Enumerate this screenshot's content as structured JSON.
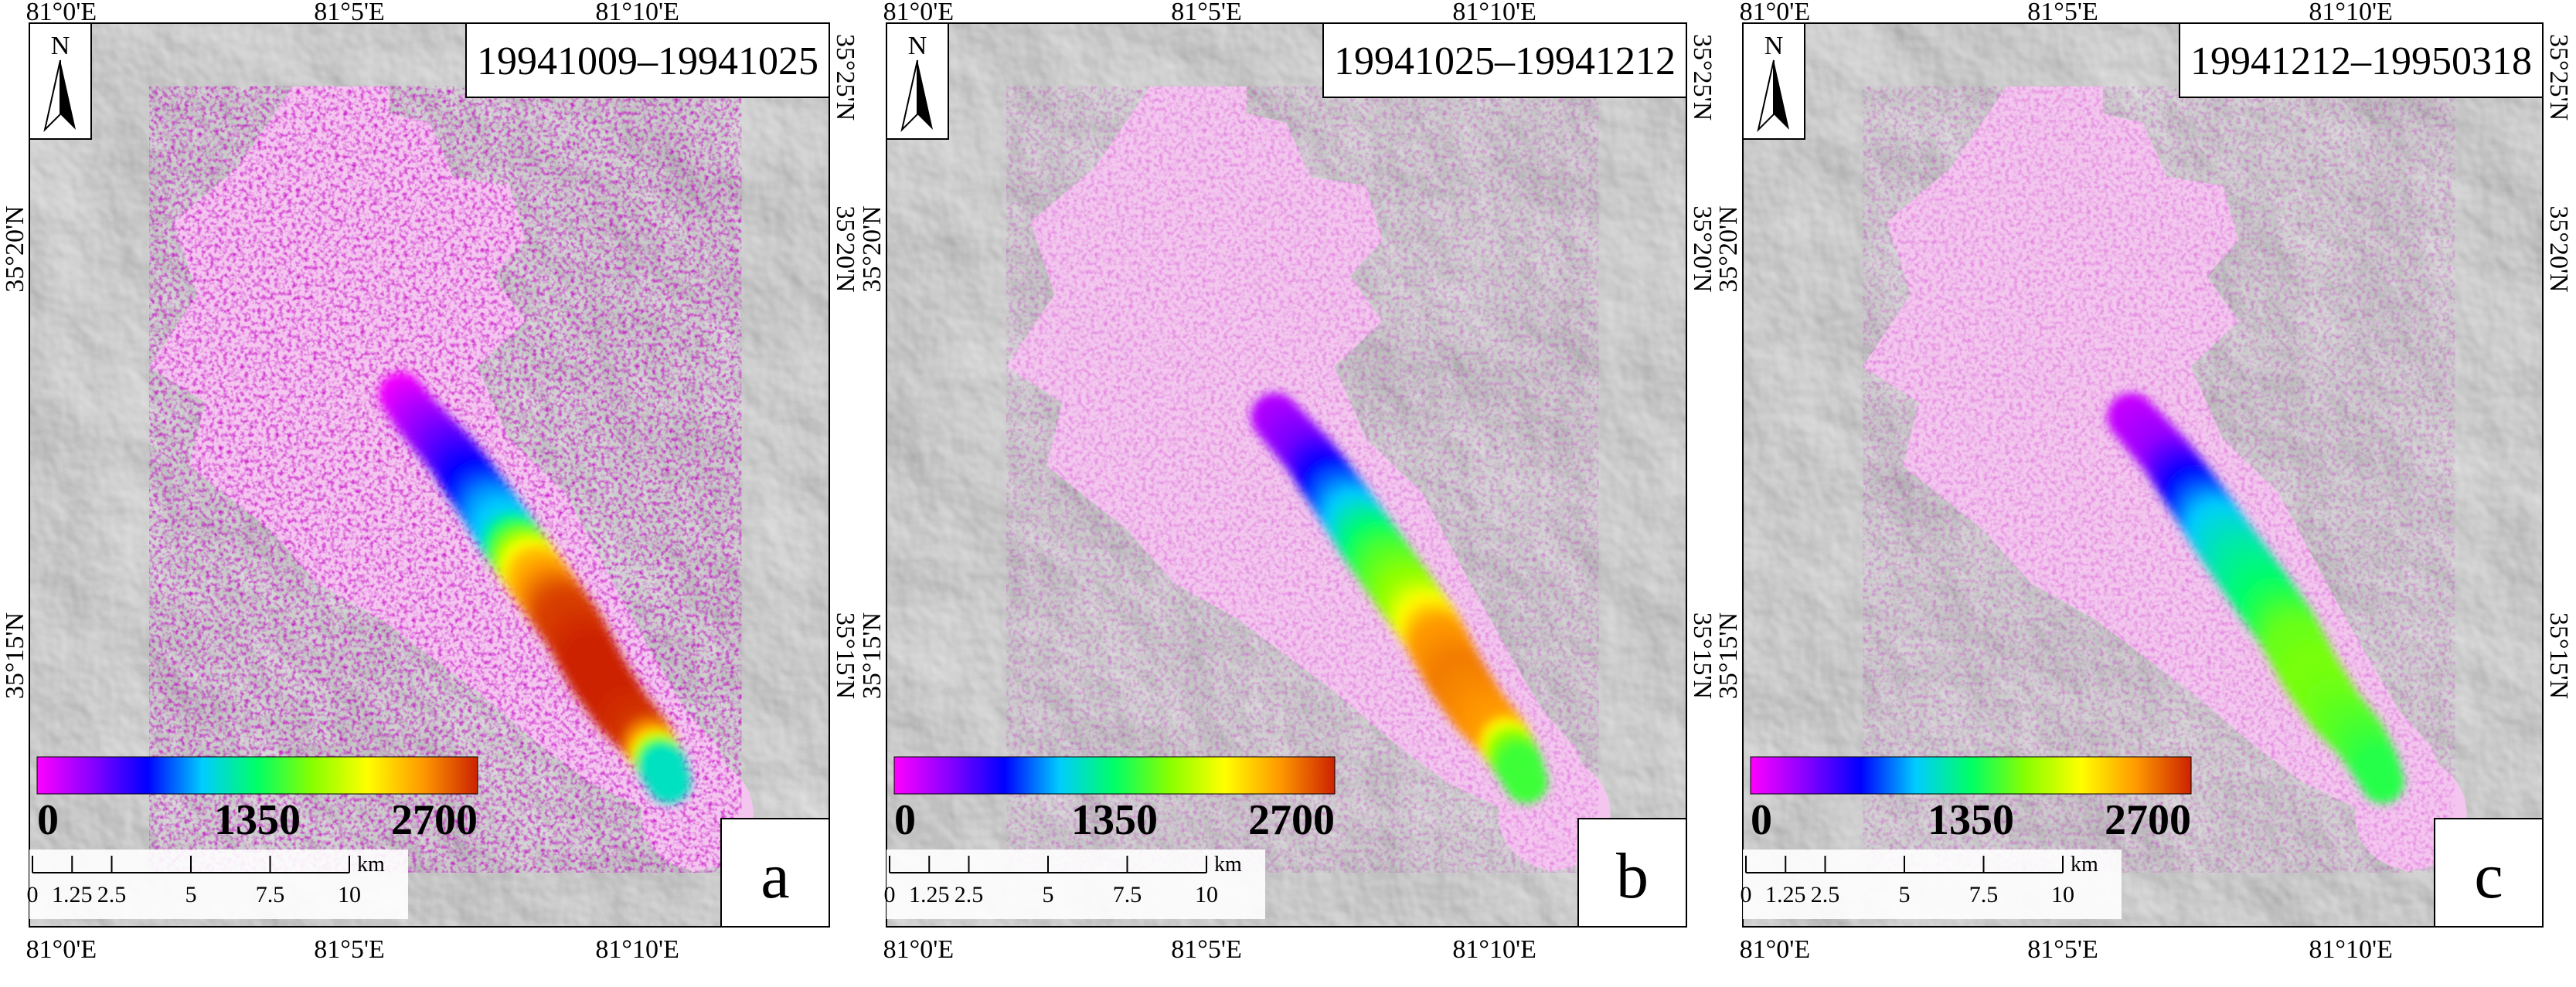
{
  "panels": [
    {
      "letter": "a",
      "date_range": "19941009–19941025",
      "top_lon_labels": [
        "81°0'E",
        "81°5'E",
        "81°10'E"
      ],
      "bottom_lon_labels": [
        "81°0'E",
        "81°5'E",
        "81°10'E"
      ],
      "left_lat_labels": [
        "35°20'N",
        "35°15'N"
      ],
      "right_lat_labels": [
        "35°25'N",
        "35°20'N",
        "35°15'N"
      ],
      "velocity_profile": [
        {
          "pos": 0.05,
          "value": 0
        },
        {
          "pos": 0.22,
          "value": 600
        },
        {
          "pos": 0.3,
          "value": 900
        },
        {
          "pos": 0.36,
          "value": 1050
        },
        {
          "pos": 0.44,
          "value": 2200
        },
        {
          "pos": 0.52,
          "value": 2600
        },
        {
          "pos": 0.62,
          "value": 2700
        },
        {
          "pos": 0.72,
          "value": 2700
        },
        {
          "pos": 0.82,
          "value": 2650
        },
        {
          "pos": 0.87,
          "value": 2300
        },
        {
          "pos": 0.9,
          "value": 1600
        },
        {
          "pos": 0.93,
          "value": 1150
        }
      ],
      "background_value": 150
    },
    {
      "letter": "b",
      "date_range": "19941025–19941212",
      "top_lon_labels": [
        "81°0'E",
        "81°5'E",
        "81°10'E"
      ],
      "bottom_lon_labels": [
        "81°0'E",
        "81°5'E",
        "81°10'E"
      ],
      "left_lat_labels": [
        "35°20'N",
        "35°15'N"
      ],
      "right_lat_labels": [
        "35°25'N",
        "35°20'N",
        "35°15'N"
      ],
      "velocity_profile": [
        {
          "pos": 0.1,
          "value": 200
        },
        {
          "pos": 0.18,
          "value": 400
        },
        {
          "pos": 0.26,
          "value": 800
        },
        {
          "pos": 0.34,
          "value": 1100
        },
        {
          "pos": 0.42,
          "value": 1500
        },
        {
          "pos": 0.5,
          "value": 1750
        },
        {
          "pos": 0.58,
          "value": 2350
        },
        {
          "pos": 0.66,
          "value": 2450
        },
        {
          "pos": 0.74,
          "value": 2400
        },
        {
          "pos": 0.82,
          "value": 2350
        },
        {
          "pos": 0.88,
          "value": 1700
        },
        {
          "pos": 0.93,
          "value": 1500
        }
      ],
      "background_value": 60
    },
    {
      "letter": "c",
      "date_range": "19941212–19950318",
      "top_lon_labels": [
        "81°0'E",
        "81°5'E",
        "81°10'E"
      ],
      "bottom_lon_labels": [
        "81°0'E",
        "81°5'E",
        "81°10'E"
      ],
      "left_lat_labels": [
        "35°20'N",
        "35°15'N"
      ],
      "right_lat_labels": [
        "35°25'N",
        "35°20'N",
        "35°15'N"
      ],
      "velocity_profile": [
        {
          "pos": 0.1,
          "value": 150
        },
        {
          "pos": 0.18,
          "value": 300
        },
        {
          "pos": 0.26,
          "value": 700
        },
        {
          "pos": 0.34,
          "value": 1000
        },
        {
          "pos": 0.42,
          "value": 1200
        },
        {
          "pos": 0.5,
          "value": 1350
        },
        {
          "pos": 0.58,
          "value": 1600
        },
        {
          "pos": 0.66,
          "value": 1650
        },
        {
          "pos": 0.74,
          "value": 1620
        },
        {
          "pos": 0.82,
          "value": 1550
        },
        {
          "pos": 0.88,
          "value": 1500
        },
        {
          "pos": 0.93,
          "value": 1450
        }
      ],
      "background_value": 40
    }
  ],
  "colorbar": {
    "min_label": "0",
    "mid_label": "1350",
    "max_label": "2700",
    "min_value": 0,
    "max_value": 2700,
    "stops": [
      "#ff00ff",
      "#8800ff",
      "#0000ff",
      "#00ccff",
      "#00ff66",
      "#88ff00",
      "#ffff00",
      "#ff9900",
      "#cc2200"
    ]
  },
  "north_arrow": {
    "label": "N"
  },
  "scalebar": {
    "unit": "km",
    "labels": [
      "0",
      "1.25",
      "2.5",
      "5",
      "7.5",
      "10"
    ]
  },
  "colors": {
    "hillshade_dark": "#5a5a5a",
    "hillshade_light": "#d8d8d8",
    "glacier_background": "#f4c6ef"
  }
}
